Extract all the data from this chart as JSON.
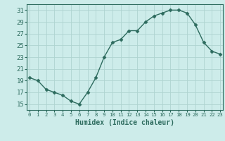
{
  "x": [
    0,
    1,
    2,
    3,
    4,
    5,
    6,
    7,
    8,
    9,
    10,
    11,
    12,
    13,
    14,
    15,
    16,
    17,
    18,
    19,
    20,
    21,
    22,
    23
  ],
  "y": [
    19.5,
    19.0,
    17.5,
    17.0,
    16.5,
    15.5,
    15.0,
    17.0,
    19.5,
    23.0,
    25.5,
    26.0,
    27.5,
    27.5,
    29.0,
    30.0,
    30.5,
    31.0,
    31.0,
    30.5,
    28.5,
    25.5,
    24.0,
    23.5
  ],
  "xlabel": "Humidex (Indice chaleur)",
  "ylim": [
    14,
    32
  ],
  "yticks": [
    15,
    17,
    19,
    21,
    23,
    25,
    27,
    29,
    31
  ],
  "xticks": [
    0,
    1,
    2,
    3,
    4,
    5,
    6,
    7,
    8,
    9,
    10,
    11,
    12,
    13,
    14,
    15,
    16,
    17,
    18,
    19,
    20,
    21,
    22,
    23
  ],
  "xlim": [
    -0.3,
    23.3
  ],
  "line_color": "#2d6b5e",
  "marker": "D",
  "marker_size": 2.5,
  "bg_color": "#cdecea",
  "grid_color": "#aed4d0",
  "tick_color": "#2d6b5e",
  "label_color": "#2d6b5e",
  "font_family": "monospace",
  "xlabel_fontsize": 7.0,
  "ytick_fontsize": 6.5,
  "xtick_fontsize": 5.2
}
